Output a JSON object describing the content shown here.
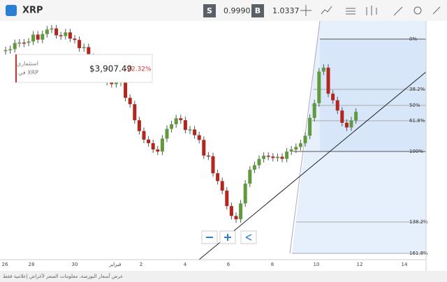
{
  "header": {
    "symbol": "XRP",
    "sell_label": "S",
    "sell_price": "0.9990",
    "buy_label": "B",
    "buy_price": "1.0337"
  },
  "tooltip": {
    "title": "استثماري",
    "subtitle": "في XRP",
    "value": "$3,907.49",
    "change": "-22.32%"
  },
  "fib_levels": [
    "0%",
    "38.2%",
    "50%",
    "61.8%",
    "100%",
    "138.2%",
    "161.8%"
  ],
  "x_axis_labels": [
    "26",
    "28",
    "30",
    "فبراير",
    "2",
    "4",
    "6",
    "8",
    "10",
    "12",
    "14"
  ],
  "footer": "عرض أسعار البورصة، معلومات السعر لأغراض إعلامية فقط"
}
